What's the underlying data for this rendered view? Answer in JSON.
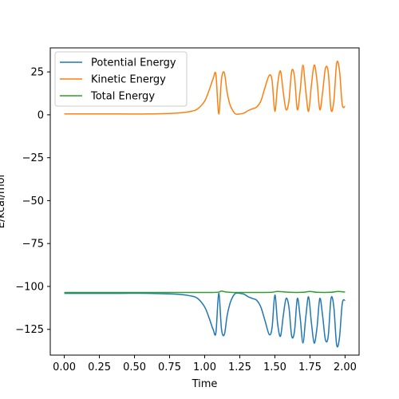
{
  "chart_data": {
    "type": "line",
    "title": "",
    "xlabel": "Time",
    "ylabel": "E/kcal/mol",
    "xlim": [
      -0.1,
      2.1
    ],
    "ylim": [
      -140,
      39
    ],
    "xticks": [
      "0.00",
      "0.25",
      "0.50",
      "0.75",
      "1.00",
      "1.25",
      "1.50",
      "1.75",
      "2.00"
    ],
    "yticks": [
      "25",
      "0",
      "−25",
      "−50",
      "−75",
      "−100",
      "−125"
    ],
    "grid": false,
    "legend_position": "top-left",
    "series": [
      {
        "name": "Potential Energy",
        "color": "#1f77b4",
        "x": [
          0.0,
          0.2,
          0.4,
          0.6,
          0.8,
          0.9,
          0.95,
          1.0,
          1.03,
          1.06,
          1.08,
          1.1,
          1.12,
          1.14,
          1.16,
          1.18,
          1.2,
          1.22,
          1.25,
          1.28,
          1.31,
          1.34,
          1.37,
          1.4,
          1.43,
          1.46,
          1.48,
          1.5,
          1.52,
          1.54,
          1.56,
          1.58,
          1.6,
          1.62,
          1.64,
          1.66,
          1.68,
          1.7,
          1.72,
          1.74,
          1.76,
          1.78,
          1.8,
          1.82,
          1.84,
          1.86,
          1.88,
          1.9,
          1.92,
          1.94,
          1.96,
          1.98,
          2.0
        ],
        "y": [
          -104,
          -104,
          -104,
          -104,
          -104.5,
          -105.5,
          -107,
          -112,
          -118,
          -125,
          -127,
          -104,
          -125,
          -128,
          -117,
          -110,
          -106,
          -104,
          -104,
          -104.5,
          -106,
          -107,
          -108,
          -112,
          -120,
          -128,
          -124,
          -105,
          -122,
          -129,
          -117,
          -107,
          -112,
          -129,
          -126,
          -107,
          -118,
          -133,
          -118,
          -106,
          -121,
          -133,
          -124,
          -107,
          -117,
          -131,
          -129,
          -107,
          -112,
          -134,
          -130,
          -110,
          -108
        ]
      },
      {
        "name": "Kinetic Energy",
        "color": "#ff7f0e",
        "x": [
          0.0,
          0.2,
          0.4,
          0.6,
          0.8,
          0.9,
          0.95,
          1.0,
          1.03,
          1.06,
          1.08,
          1.1,
          1.12,
          1.14,
          1.16,
          1.18,
          1.2,
          1.22,
          1.25,
          1.28,
          1.31,
          1.34,
          1.37,
          1.4,
          1.43,
          1.46,
          1.48,
          1.5,
          1.52,
          1.54,
          1.56,
          1.58,
          1.6,
          1.62,
          1.64,
          1.66,
          1.68,
          1.7,
          1.72,
          1.74,
          1.76,
          1.78,
          1.8,
          1.82,
          1.84,
          1.86,
          1.88,
          1.9,
          1.92,
          1.94,
          1.96,
          1.98,
          2.0
        ],
        "y": [
          0.5,
          0.5,
          0.5,
          0.5,
          1,
          2,
          3.5,
          8,
          14,
          21,
          23.5,
          0.5,
          21,
          24.5,
          13,
          6,
          2.5,
          0.5,
          0.5,
          1,
          2.5,
          3.5,
          4.5,
          8,
          16,
          23,
          20,
          2,
          18,
          25.5,
          13,
          3,
          8,
          25.5,
          22,
          3,
          14,
          29,
          14,
          2,
          17,
          29,
          20,
          3,
          13,
          27,
          25,
          3,
          8,
          30,
          26,
          6,
          5
        ]
      },
      {
        "name": "Total Energy",
        "color": "#2ca02c",
        "x": [
          0.0,
          0.2,
          0.4,
          0.6,
          0.8,
          1.0,
          1.05,
          1.1,
          1.12,
          1.15,
          1.2,
          1.3,
          1.4,
          1.48,
          1.52,
          1.6,
          1.7,
          1.75,
          1.8,
          1.9,
          1.95,
          2.0
        ],
        "y": [
          -103.5,
          -103.5,
          -103.5,
          -103.5,
          -103.5,
          -103.5,
          -103.5,
          -103.3,
          -102.7,
          -103.2,
          -103.5,
          -103.5,
          -103.5,
          -103.4,
          -102.9,
          -103.4,
          -103.4,
          -102.9,
          -103.4,
          -103.4,
          -102.9,
          -103.3
        ]
      }
    ]
  }
}
